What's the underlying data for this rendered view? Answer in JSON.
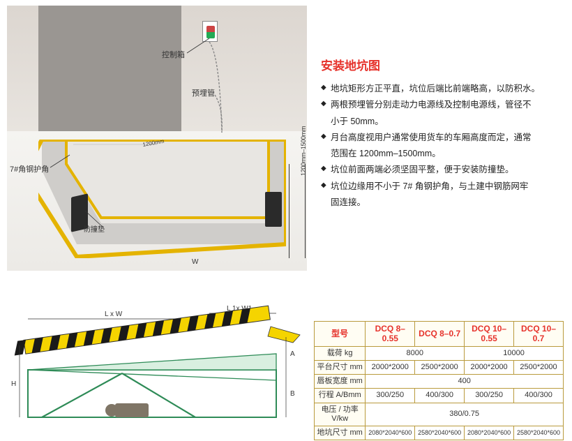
{
  "title": "安装地坑图",
  "bullets": [
    "地坑矩形方正平直，坑位后端比前端略高，以防积水。",
    "两根预埋管分别走动力电源线及控制电源线，管径不",
    "月台高度视用户通常使用货车的车厢高度而定，通常",
    "坑位前面两端必须坚固平整，便于安装防撞垫。",
    "坑位边缘用不小于 7# 角钢护角，与土建中钢筋网牢"
  ],
  "bullet_cont": {
    "1": "小于 50mm。",
    "2": "范围在 1200mm–1500mm。",
    "4": "固连接。"
  },
  "labels": {
    "control_box": "控制箱",
    "buried_pipe": "预埋管",
    "angle_steel": "7#角钢护角",
    "bumper": "防撞垫",
    "w": "W",
    "dim_v": "1200mm–1500mm"
  },
  "side_diagram": {
    "dims": {
      "LxW": "L x W",
      "L1xW1": "L 1x W1",
      "H": "H",
      "A": "A",
      "B": "B"
    },
    "hazard_colors": [
      "#f5d400",
      "#1a1a1a"
    ]
  },
  "table": {
    "header_model": "型号",
    "models": [
      "DCQ 8–0.55",
      "DCQ 8–0.7",
      "DCQ 10–0.55",
      "DCQ 10–0.7"
    ],
    "rows": [
      {
        "label": "载荷 kg",
        "cells": [
          {
            "span": 2,
            "v": "8000"
          },
          {
            "span": 2,
            "v": "10000"
          }
        ]
      },
      {
        "label": "平台尺寸 mm",
        "cells": [
          {
            "v": "2000*2000"
          },
          {
            "v": "2500*2000"
          },
          {
            "v": "2000*2000"
          },
          {
            "v": "2500*2000"
          }
        ]
      },
      {
        "label": "唇板宽度 mm",
        "cells": [
          {
            "span": 4,
            "v": "400"
          }
        ]
      },
      {
        "label": "行程 A/Bmm",
        "cells": [
          {
            "v": "300/250"
          },
          {
            "v": "400/300"
          },
          {
            "v": "300/250"
          },
          {
            "v": "400/300"
          }
        ]
      },
      {
        "label": "电压 / 功率 V/kw",
        "cells": [
          {
            "span": 4,
            "v": "380/0.75"
          }
        ]
      },
      {
        "label": "地坑尺寸 mm",
        "cells": [
          {
            "v": "2080*2040*600"
          },
          {
            "v": "2580*2040*600"
          },
          {
            "v": "2080*2040*600"
          },
          {
            "v": "2580*2040*600"
          }
        ]
      }
    ]
  },
  "colors": {
    "accent_red": "#e6322b",
    "table_border": "#b99a3c",
    "pit_line": "#e4b300",
    "diagram_green": "#2e8b57"
  }
}
